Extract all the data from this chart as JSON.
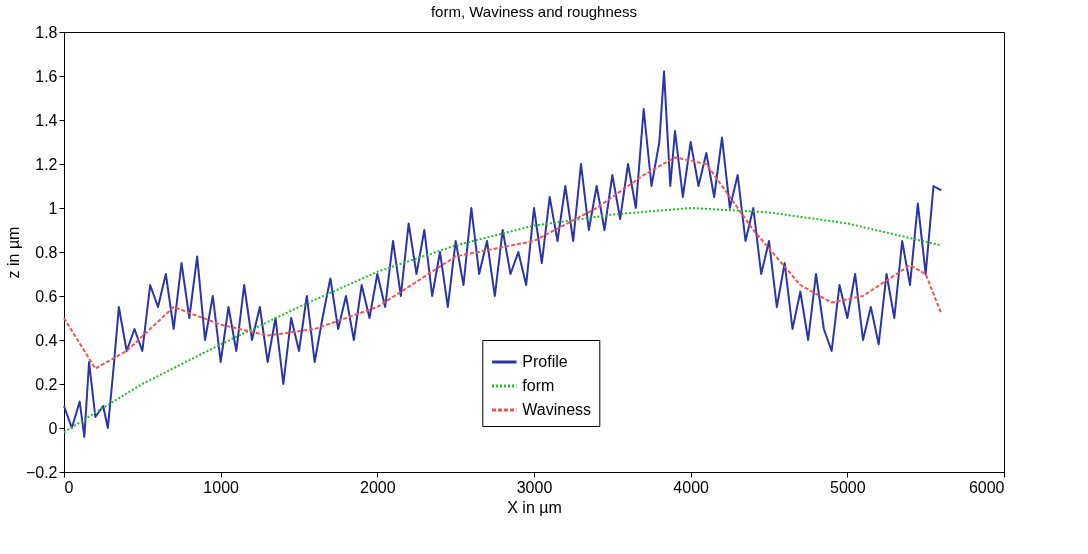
{
  "chart_data": {
    "type": "line",
    "title": "form, Waviness and roughness",
    "xlabel": "X in µm",
    "ylabel": "z in µm",
    "xlim": [
      0,
      6000
    ],
    "xticks": [
      0,
      1000,
      2000,
      3000,
      4000,
      5000,
      6000
    ],
    "ylim": [
      -0.2,
      1.8
    ],
    "yticks": [
      -0.2,
      0,
      0.2,
      0.4,
      0.6,
      0.8,
      1,
      1.2,
      1.4,
      1.6,
      1.8
    ],
    "grid": false,
    "legend": "bottom",
    "series": [
      {
        "name": "Profile",
        "color": "#2b35a8",
        "line_style": "solid",
        "x": [
          0,
          50,
          100,
          130,
          160,
          200,
          250,
          280,
          320,
          350,
          400,
          450,
          500,
          550,
          600,
          650,
          700,
          750,
          800,
          850,
          900,
          950,
          1000,
          1050,
          1100,
          1150,
          1200,
          1250,
          1300,
          1350,
          1400,
          1450,
          1500,
          1550,
          1600,
          1650,
          1700,
          1750,
          1800,
          1850,
          1900,
          1950,
          2000,
          2050,
          2100,
          2150,
          2200,
          2250,
          2300,
          2350,
          2400,
          2450,
          2500,
          2550,
          2600,
          2650,
          2700,
          2750,
          2800,
          2850,
          2900,
          2950,
          3000,
          3050,
          3100,
          3150,
          3200,
          3250,
          3300,
          3350,
          3400,
          3450,
          3500,
          3550,
          3600,
          3650,
          3700,
          3750,
          3800,
          3830,
          3870,
          3900,
          3950,
          4000,
          4050,
          4100,
          4150,
          4200,
          4250,
          4300,
          4350,
          4400,
          4450,
          4500,
          4550,
          4600,
          4650,
          4700,
          4750,
          4800,
          4850,
          4900,
          4950,
          5000,
          5050,
          5100,
          5150,
          5200,
          5250,
          5300,
          5350,
          5400,
          5450,
          5500,
          5550,
          5600
        ],
        "values": [
          0.1,
          0.0,
          0.12,
          -0.04,
          0.3,
          0.05,
          0.1,
          0.0,
          0.3,
          0.55,
          0.35,
          0.45,
          0.35,
          0.65,
          0.55,
          0.7,
          0.45,
          0.75,
          0.5,
          0.78,
          0.4,
          0.6,
          0.3,
          0.55,
          0.35,
          0.65,
          0.4,
          0.55,
          0.3,
          0.5,
          0.2,
          0.5,
          0.35,
          0.6,
          0.3,
          0.5,
          0.68,
          0.45,
          0.6,
          0.4,
          0.65,
          0.5,
          0.7,
          0.55,
          0.85,
          0.6,
          0.93,
          0.7,
          0.9,
          0.6,
          0.8,
          0.55,
          0.85,
          0.65,
          1.0,
          0.7,
          0.85,
          0.6,
          0.9,
          0.7,
          0.8,
          0.65,
          1.0,
          0.75,
          1.05,
          0.85,
          1.1,
          0.85,
          1.2,
          0.9,
          1.1,
          0.9,
          1.15,
          0.95,
          1.2,
          1.0,
          1.45,
          1.1,
          1.3,
          1.62,
          1.1,
          1.35,
          1.05,
          1.3,
          1.1,
          1.25,
          1.05,
          1.32,
          1.0,
          1.15,
          0.85,
          1.0,
          0.7,
          0.85,
          0.55,
          0.75,
          0.45,
          0.62,
          0.4,
          0.7,
          0.45,
          0.35,
          0.65,
          0.5,
          0.7,
          0.4,
          0.55,
          0.38,
          0.7,
          0.5,
          0.85,
          0.65,
          1.02,
          0.7,
          1.1,
          1.08
        ]
      },
      {
        "name": "form",
        "color": "#22bb22",
        "line_style": "dotted",
        "x": [
          0,
          200,
          500,
          1000,
          1500,
          2000,
          2500,
          3000,
          3500,
          4000,
          4500,
          5000,
          5600
        ],
        "values": [
          -0.02,
          0.07,
          0.2,
          0.38,
          0.55,
          0.71,
          0.83,
          0.92,
          0.97,
          1.0,
          0.98,
          0.93,
          0.83
        ]
      },
      {
        "name": "Waviness",
        "color": "#ee5555",
        "line_style": "dashed",
        "x": [
          0,
          200,
          400,
          700,
          1000,
          1300,
          1600,
          2000,
          2500,
          3000,
          3400,
          3700,
          3900,
          4100,
          4400,
          4700,
          4900,
          5100,
          5400,
          5500,
          5600
        ],
        "values": [
          0.5,
          0.27,
          0.35,
          0.55,
          0.47,
          0.42,
          0.45,
          0.55,
          0.78,
          0.85,
          1.0,
          1.15,
          1.23,
          1.2,
          0.9,
          0.65,
          0.57,
          0.6,
          0.74,
          0.7,
          0.52
        ]
      }
    ]
  }
}
